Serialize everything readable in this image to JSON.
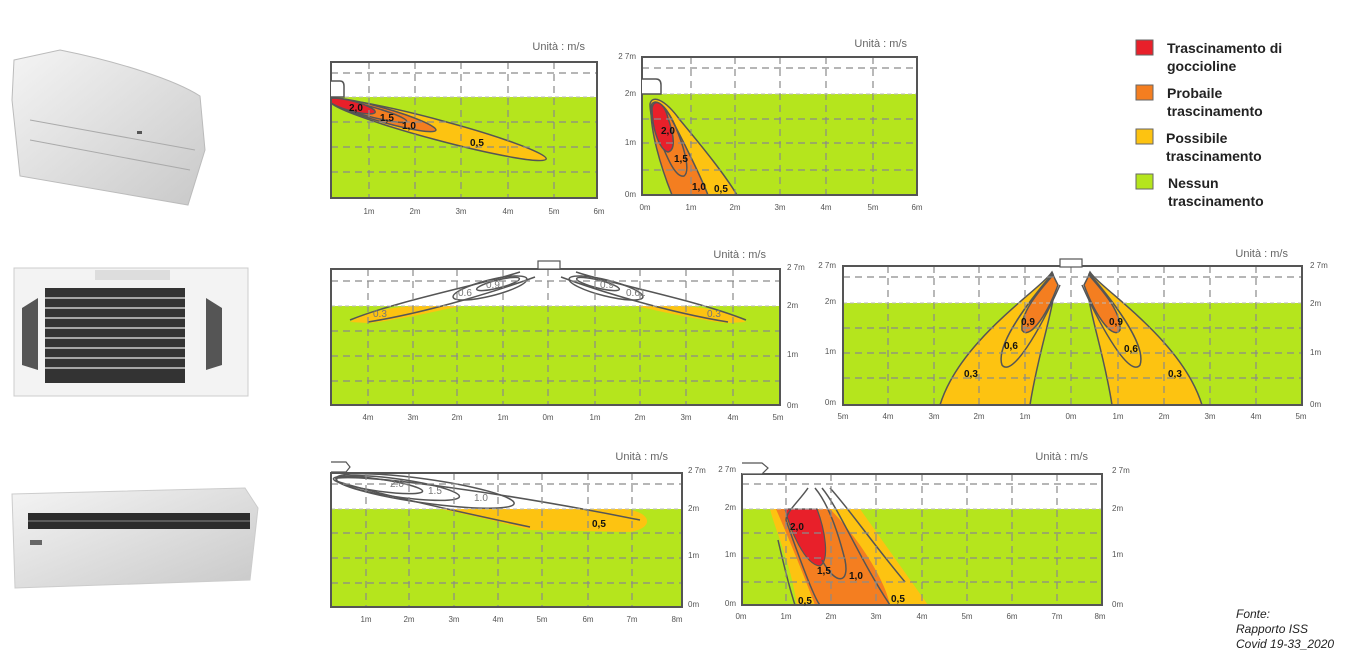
{
  "legend": [
    {
      "lines": [
        "Trascinamento di",
        "goccioline"
      ],
      "color": "#e8202a"
    },
    {
      "lines": [
        "Probaile",
        "trascinamento"
      ],
      "color": "#f47e20"
    },
    {
      "lines": [
        "Possibile",
        "trascinamento"
      ],
      "color": "#fdc311"
    },
    {
      "lines": [
        "Nessun",
        "trascinamento"
      ],
      "color": "#b5e51d"
    }
  ],
  "colors": {
    "green": "#b5e51d",
    "yellow": "#fdc311",
    "orange": "#f47e20",
    "red": "#e8202a",
    "contour": "#555555"
  },
  "panels": [
    {
      "unit": "Unità : m/s",
      "x_ticks": [
        "1m",
        "2m",
        "3m",
        "4m",
        "5m",
        "6m"
      ],
      "y_left": [],
      "y_right": [],
      "contour_labels": [
        "2,0",
        "1,5",
        "1,0",
        "0,5"
      ]
    },
    {
      "unit": "Unità : m/s",
      "x_ticks": [
        "0m",
        "1m",
        "2m",
        "3m",
        "4m",
        "5m",
        "6m"
      ],
      "y_left": [
        "2 7m",
        "2m",
        "1m",
        "0m"
      ],
      "y_right": [],
      "contour_labels": [
        "2,0",
        "1,5",
        "1,0",
        "0,5"
      ]
    },
    {
      "unit": "Unità : m/s",
      "x_ticks": [
        "4m",
        "3m",
        "2m",
        "1m",
        "0m",
        "1m",
        "2m",
        "3m",
        "4m",
        "5m"
      ],
      "y_left": [],
      "y_right": [
        "2 7m",
        "2m",
        "1m",
        "0m"
      ],
      "contour_labels": [
        "0.6",
        "0.9",
        "0.3",
        "0.9",
        "0.61",
        "0.3"
      ]
    },
    {
      "unit": "Unità : m/s",
      "x_ticks": [
        "5m",
        "4m",
        "3m",
        "2m",
        "1m",
        "0m",
        "1m",
        "2m",
        "3m",
        "4m",
        "5m"
      ],
      "y_left": [
        "2 7m",
        "2m",
        "1m",
        "0m"
      ],
      "y_right": [
        "2 7m",
        "2m",
        "1m",
        "0m"
      ],
      "contour_labels": [
        "0,9",
        "0,6",
        "0,3",
        "0,9",
        "0,6",
        "0,3"
      ]
    },
    {
      "unit": "Unità : m/s",
      "x_ticks": [
        "1m",
        "2m",
        "3m",
        "4m",
        "5m",
        "6m",
        "7m",
        "8m"
      ],
      "y_left": [],
      "y_right": [
        "2 7m",
        "2m",
        "1m",
        "0m"
      ],
      "contour_labels": [
        "2.0",
        "1.5",
        "1.0",
        "0,5"
      ]
    },
    {
      "unit": "Unità : m/s",
      "x_ticks": [
        "0m",
        "1m",
        "2m",
        "3m",
        "4m",
        "5m",
        "6m",
        "7m",
        "8m"
      ],
      "y_left": [
        "2 7m",
        "2m",
        "1m",
        "0m"
      ],
      "y_right": [
        "2 7m",
        "2m",
        "1m",
        "0m"
      ],
      "contour_labels": [
        "2,0",
        "1,5",
        "1,0",
        "0,5",
        "0,5"
      ]
    }
  ],
  "source": {
    "line1": "Fonte:",
    "line2": "Rapporto ISS",
    "line3": "Covid 19-33_2020"
  }
}
